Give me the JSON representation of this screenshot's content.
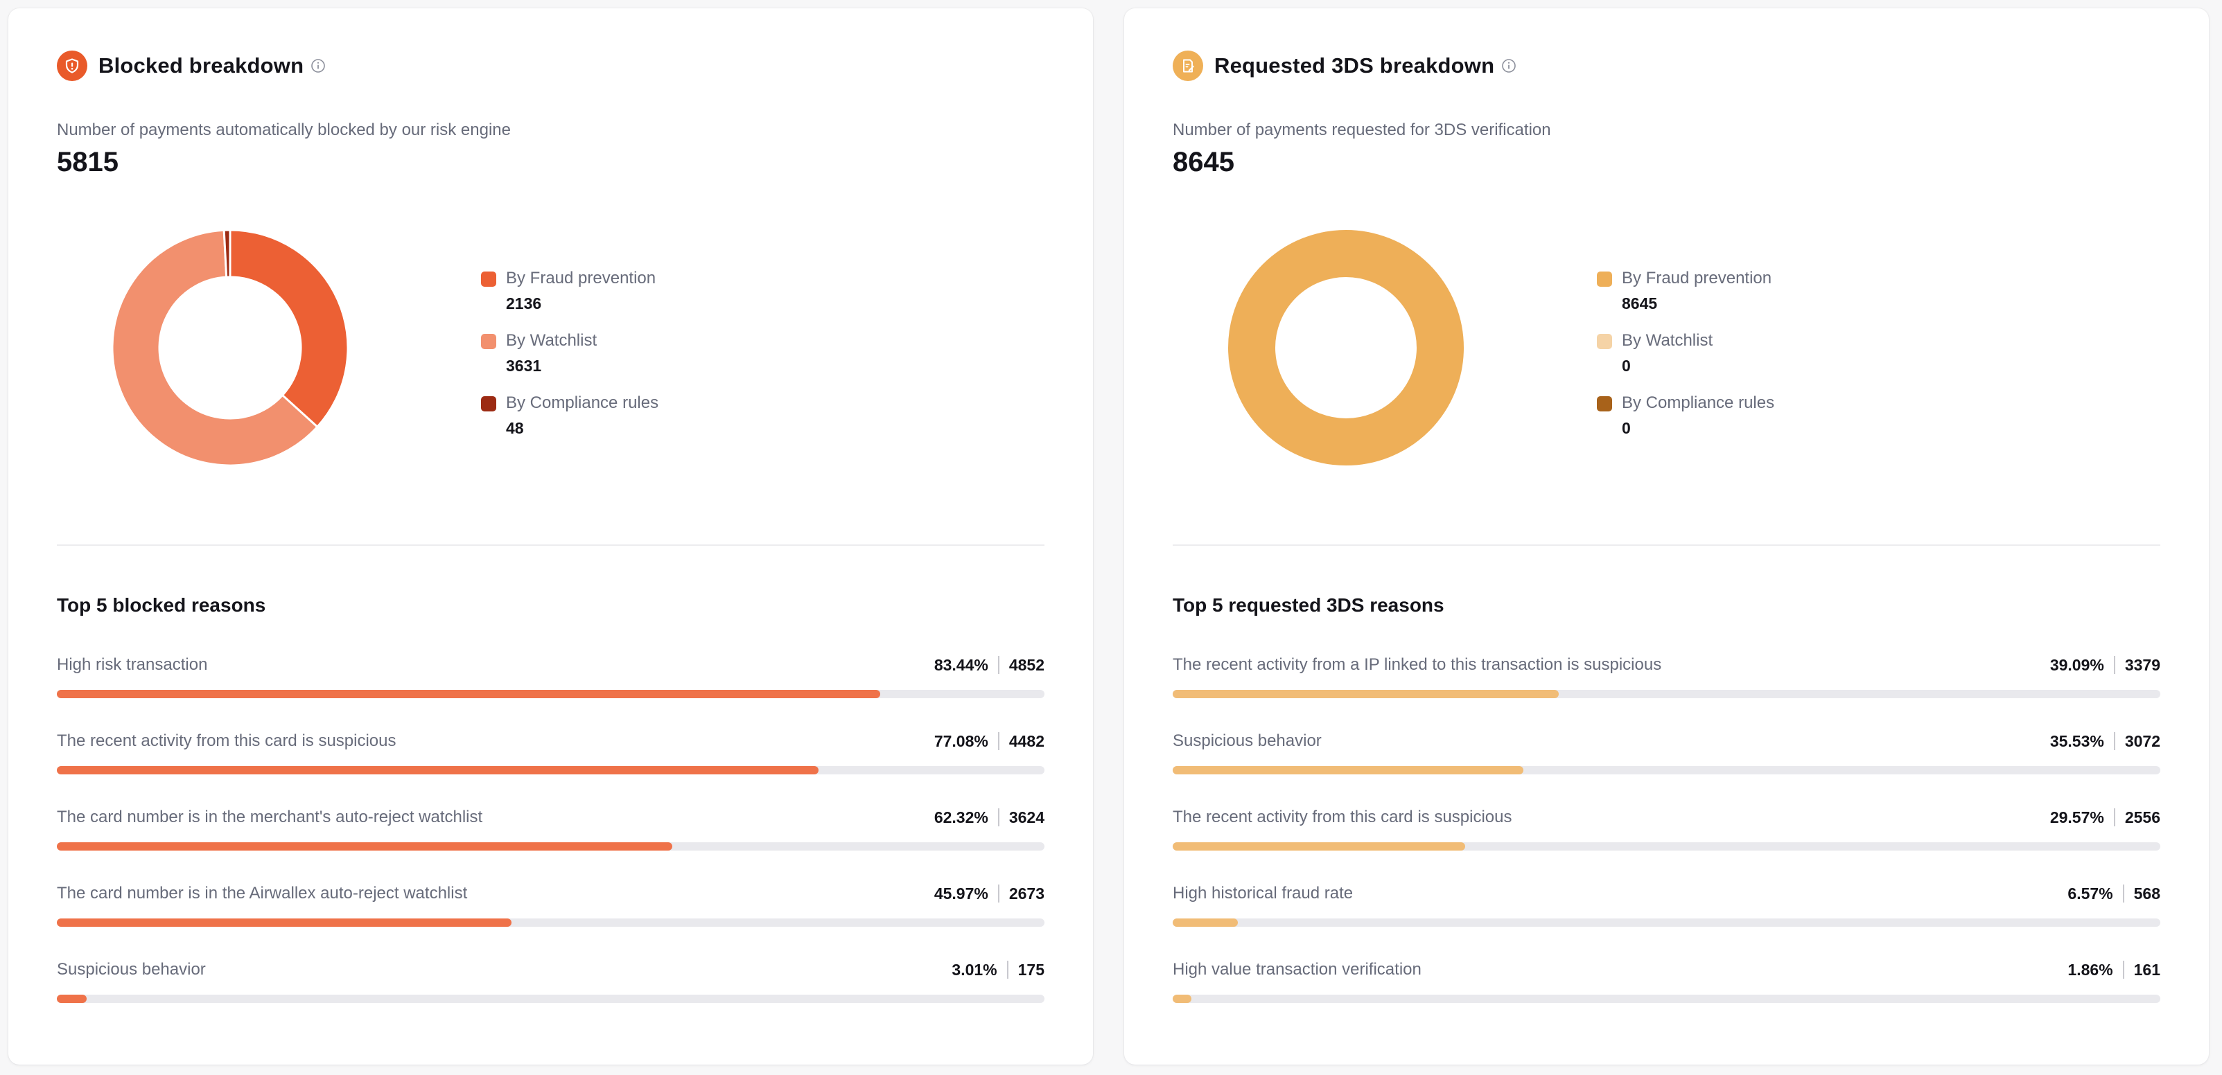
{
  "colors": {
    "blocked": {
      "fraud": "#ec6034",
      "watchlist": "#f2906e",
      "compliance": "#9c2b13",
      "bar": "#ef7249",
      "icon_bg": "#e95a2a"
    },
    "tds": {
      "fraud": "#eeaf58",
      "watchlist": "#f5d3a6",
      "compliance": "#a8621a",
      "bar": "#f1bc76",
      "icon_bg": "#efb057"
    }
  },
  "blocked": {
    "title": "Blocked breakdown",
    "subtitle": "Number of payments automatically blocked by our risk engine",
    "total": "5815",
    "legend": [
      {
        "label": "By Fraud prevention",
        "value": "2136",
        "color": "#ec6034"
      },
      {
        "label": "By Watchlist",
        "value": "3631",
        "color": "#f2906e"
      },
      {
        "label": "By Compliance rules",
        "value": "48",
        "color": "#9c2b13"
      }
    ],
    "section_title": "Top 5 blocked reasons",
    "reasons": [
      {
        "label": "High risk transaction",
        "percent": "83.44%",
        "count": "4852",
        "fill": 0.834
      },
      {
        "label": "The recent activity from this card is suspicious",
        "percent": "77.08%",
        "count": "4482",
        "fill": 0.771
      },
      {
        "label": "The card number is in the merchant's auto-reject watchlist",
        "percent": "62.32%",
        "count": "3624",
        "fill": 0.623
      },
      {
        "label": "The card number is in the Airwallex auto-reject watchlist",
        "percent": "45.97%",
        "count": "2673",
        "fill": 0.46
      },
      {
        "label": "Suspicious behavior",
        "percent": "3.01%",
        "count": "175",
        "fill": 0.03
      }
    ]
  },
  "tds": {
    "title": "Requested 3DS breakdown",
    "subtitle": "Number of payments requested for 3DS verification",
    "total": "8645",
    "legend": [
      {
        "label": "By Fraud prevention",
        "value": "8645",
        "color": "#eeaf58"
      },
      {
        "label": "By Watchlist",
        "value": "0",
        "color": "#f5d3a6"
      },
      {
        "label": "By Compliance rules",
        "value": "0",
        "color": "#a8621a"
      }
    ],
    "section_title": "Top 5 requested 3DS reasons",
    "reasons": [
      {
        "label": "The recent activity from a IP linked to this transaction is suspicious",
        "percent": "39.09%",
        "count": "3379",
        "fill": 0.391
      },
      {
        "label": "Suspicious behavior",
        "percent": "35.53%",
        "count": "3072",
        "fill": 0.355
      },
      {
        "label": "The recent activity from this card is suspicious",
        "percent": "29.57%",
        "count": "2556",
        "fill": 0.296
      },
      {
        "label": "High historical fraud rate",
        "percent": "6.57%",
        "count": "568",
        "fill": 0.066
      },
      {
        "label": "High value transaction verification",
        "percent": "1.86%",
        "count": "161",
        "fill": 0.019
      }
    ]
  },
  "icons": {
    "blocked_badge": "shield-icon",
    "tds_badge": "document-edit-icon",
    "info": "info-icon"
  }
}
